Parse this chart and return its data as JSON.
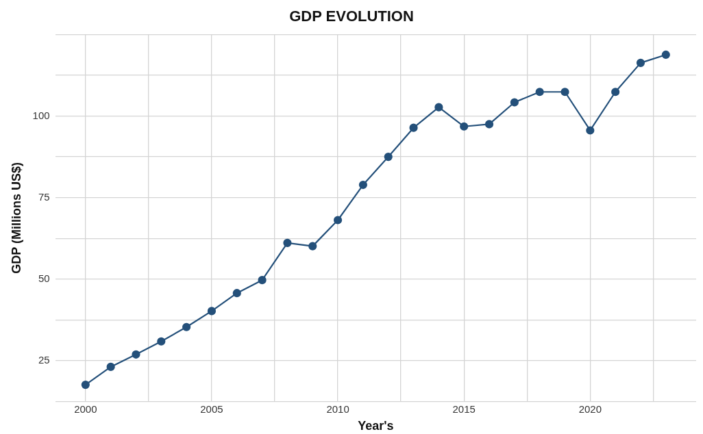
{
  "chart_data": {
    "type": "line",
    "title": "GDP EVOLUTION",
    "xlabel": "Year's",
    "ylabel": "GDP (Millions US$)",
    "x": [
      2000,
      2001,
      2002,
      2003,
      2004,
      2005,
      2006,
      2007,
      2008,
      2009,
      2010,
      2011,
      2012,
      2013,
      2014,
      2015,
      2016,
      2017,
      2018,
      2019,
      2020,
      2021,
      2022,
      2023
    ],
    "series": [
      {
        "color": "#24507a",
        "values": [
          17.6,
          23.1,
          26.9,
          30.9,
          35.3,
          40.2,
          45.7,
          49.7,
          61.1,
          60.1,
          68.1,
          78.9,
          87.5,
          96.4,
          102.7,
          96.8,
          97.5,
          104.2,
          107.4,
          107.4,
          95.6,
          107.4,
          116.3,
          118.8
        ]
      }
    ],
    "xlim": [
      1998.8,
      2024.2
    ],
    "ylim": [
      12.5,
      125
    ],
    "xticks": [
      2000,
      {
        "value": 2002.5,
        "label": null
      },
      2005,
      {
        "value": 2007.5,
        "label": null
      },
      2010,
      {
        "value": 2012.5,
        "label": null
      },
      2015,
      {
        "value": 2017.5,
        "label": null
      },
      2020,
      {
        "value": 2022.5,
        "label": null
      }
    ],
    "yticks": [
      {
        "value": 12.5,
        "label": null
      },
      25,
      {
        "value": 37.5,
        "label": null
      },
      50,
      {
        "value": 62.5,
        "label": null
      },
      75,
      {
        "value": 87.5,
        "label": null
      },
      100,
      {
        "value": 112.5,
        "label": null
      },
      {
        "value": 125,
        "label": null
      }
    ],
    "grid": true,
    "legend": false,
    "marker": "circle",
    "line_style": "solid"
  }
}
